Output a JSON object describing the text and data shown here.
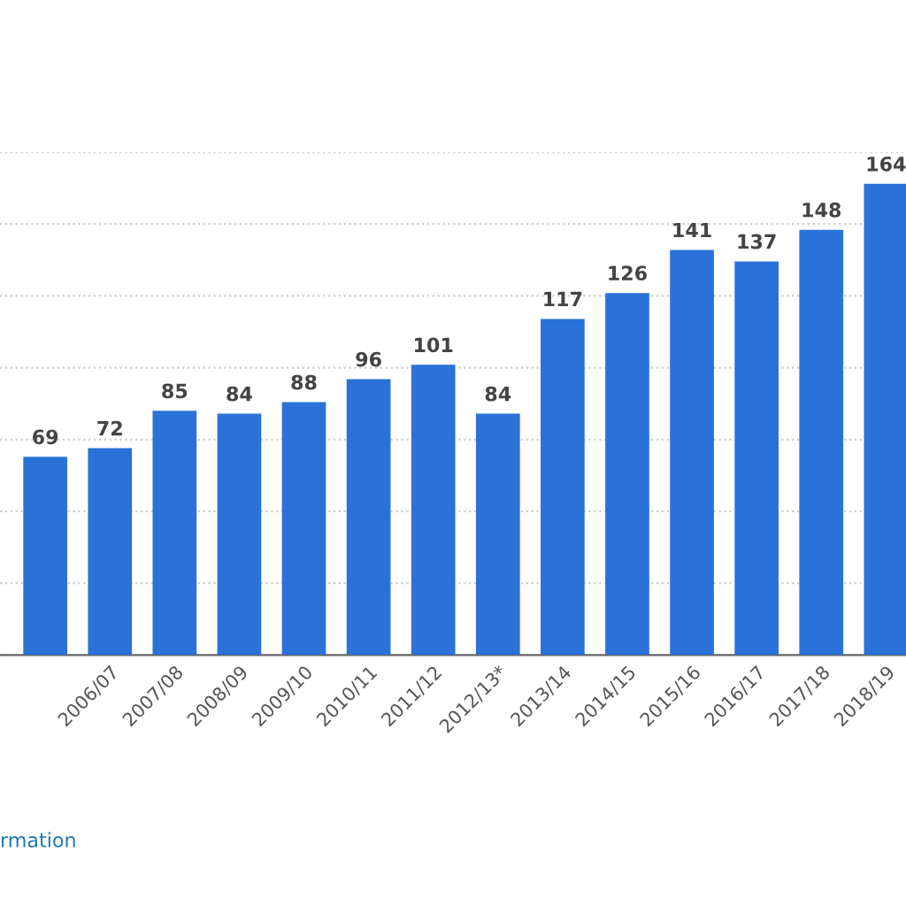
{
  "chart_data": {
    "type": "bar",
    "categories": [
      null,
      "2006/07",
      "2007/08",
      "2008/09",
      "2009/10",
      "2010/11",
      "2011/12",
      "2012/13*",
      "2013/14",
      "2014/15",
      "2015/16",
      "2016/17",
      "2017/18",
      "2018/19"
    ],
    "values": [
      69,
      72,
      85,
      84,
      88,
      96,
      101,
      84,
      117,
      126,
      141,
      137,
      148,
      164
    ],
    "color": "#2a72d8",
    "data_labels": true,
    "ylim": [
      0,
      175
    ],
    "yticks": [
      {
        "value": 0,
        "label": null
      },
      {
        "value": 25,
        "label": null
      },
      {
        "value": 50,
        "label": null
      },
      {
        "value": 75,
        "label": null
      },
      {
        "value": 100,
        "label": null
      },
      {
        "value": 125,
        "label": null
      },
      {
        "value": 150,
        "label": null
      },
      {
        "value": 175,
        "label": null
      }
    ],
    "grid": "y",
    "tick_labels": "x",
    "annotations": [
      "rmation"
    ]
  }
}
